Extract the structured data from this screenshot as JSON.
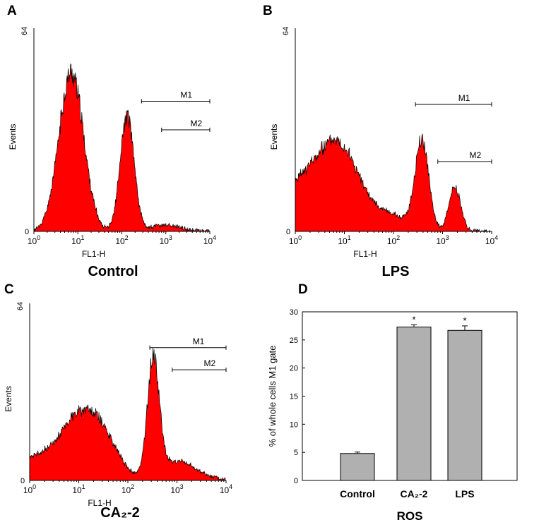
{
  "chart_data": [
    {
      "type": "area",
      "panel_label": "A",
      "caption": "Control",
      "xlabel": "FL1-H",
      "ylabel": "Events",
      "xscale": "log",
      "xlim": [
        1,
        10000
      ],
      "ylim": [
        0,
        64
      ],
      "x_ticks": [
        "10^0",
        "10^1",
        "10^2",
        "10^3",
        "10^4"
      ],
      "y_ticks": [
        "0",
        "64"
      ],
      "fill_color": "#ff0000",
      "markers": [
        {
          "label": "M1",
          "x_range": [
            280,
            10000
          ],
          "y": 41
        },
        {
          "label": "M2",
          "x_range": [
            800,
            10000
          ],
          "y": 32
        }
      ],
      "peaks": [
        {
          "center_log10": 0.85,
          "width": 0.28,
          "height": 50
        },
        {
          "center_log10": 2.12,
          "width": 0.16,
          "height": 36
        },
        {
          "center_log10": 3.0,
          "width": 0.35,
          "height": 2
        }
      ]
    },
    {
      "type": "area",
      "panel_label": "B",
      "caption": "LPS",
      "xlabel": "FL1-H",
      "ylabel": "Events",
      "xscale": "log",
      "xlim": [
        1,
        10000
      ],
      "ylim": [
        0,
        64
      ],
      "x_ticks": [
        "10^0",
        "10^1",
        "10^2",
        "10^3",
        "10^4"
      ],
      "y_ticks": [
        "0",
        "64"
      ],
      "fill_color": "#ff0000",
      "markers": [
        {
          "label": "M1",
          "x_range": [
            280,
            10000
          ],
          "y": 40
        },
        {
          "label": "M2",
          "x_range": [
            800,
            10000
          ],
          "y": 22
        }
      ],
      "peaks": [
        {
          "center_log10": 0.85,
          "width": 0.42,
          "height": 28
        },
        {
          "center_log10": 0.05,
          "width": 0.35,
          "height": 12
        },
        {
          "center_log10": 2.58,
          "width": 0.14,
          "height": 28
        },
        {
          "center_log10": 3.25,
          "width": 0.12,
          "height": 14
        },
        {
          "center_log10": 1.9,
          "width": 0.4,
          "height": 5
        }
      ]
    },
    {
      "type": "area",
      "panel_label": "C",
      "caption": "CA₂-2",
      "xlabel": "FL1-H",
      "ylabel": "Events",
      "xscale": "log",
      "xlim": [
        1,
        10000
      ],
      "ylim": [
        0,
        64
      ],
      "x_ticks": [
        "10^0",
        "10^1",
        "10^2",
        "10^3",
        "10^4"
      ],
      "y_ticks": [
        "0",
        "64"
      ],
      "fill_color": "#ff0000",
      "markers": [
        {
          "label": "M1",
          "x_range": [
            280,
            10000
          ],
          "y": 48
        },
        {
          "label": "M2",
          "x_range": [
            800,
            10000
          ],
          "y": 40
        }
      ],
      "peaks": [
        {
          "center_log10": 1.0,
          "width": 0.4,
          "height": 23
        },
        {
          "center_log10": 1.55,
          "width": 0.3,
          "height": 10
        },
        {
          "center_log10": 0.1,
          "width": 0.35,
          "height": 7
        },
        {
          "center_log10": 2.52,
          "width": 0.12,
          "height": 42
        },
        {
          "center_log10": 3.0,
          "width": 0.4,
          "height": 7
        }
      ]
    },
    {
      "type": "bar",
      "panel_label": "D",
      "categories": [
        "Control",
        "CA₂-2",
        "LPS"
      ],
      "values": [
        4.8,
        27.3,
        26.7
      ],
      "errors": [
        0.25,
        0.4,
        0.8
      ],
      "significance": [
        "",
        "*",
        "*"
      ],
      "xlabel": "ROS",
      "ylabel": "% of whole cells M1 gate",
      "ylim": [
        0,
        30
      ],
      "y_ticks": [
        0,
        5,
        10,
        15,
        20,
        25,
        30
      ],
      "bar_color": "#b0b0b0"
    }
  ]
}
